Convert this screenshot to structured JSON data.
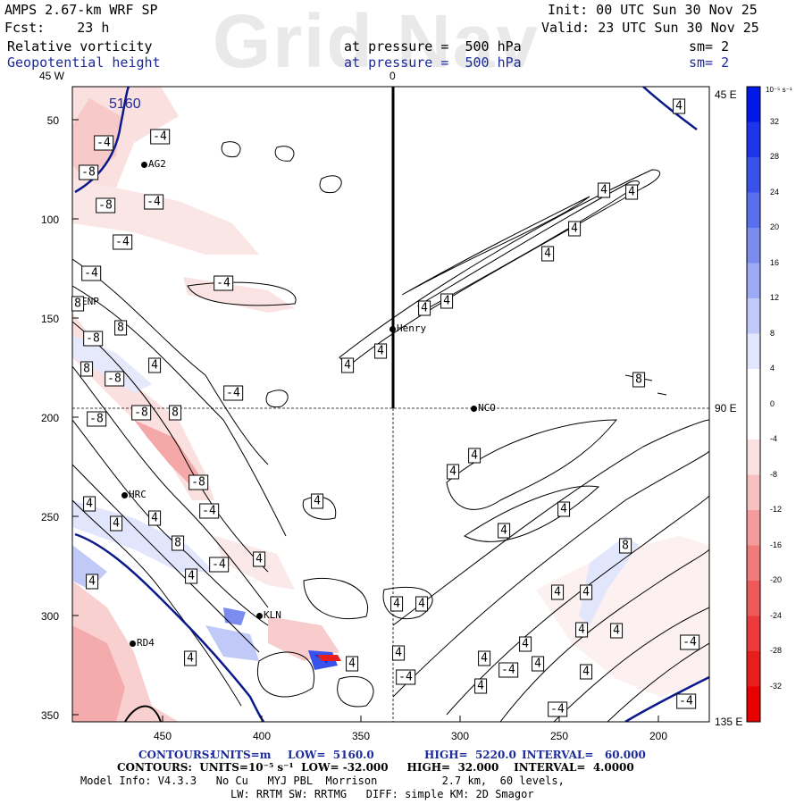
{
  "header": {
    "model": "AMPS 2.67-km WRF SP",
    "init": "Init: 00 UTC Sun 30 Nov 25",
    "fcst": "Fcst:    23 h",
    "valid": "Valid: 23 UTC Sun 30 Nov 25",
    "field1": "Relative vorticity",
    "field1_level": "at pressure =  500 hPa",
    "field1_sm": "sm= 2",
    "field2": "Geopotential height",
    "field2_level": "at pressure =  500 hPa",
    "field2_sm": "sm= 2",
    "watermark": "Grid Nav"
  },
  "map": {
    "meridian_labels": {
      "top_left": "45 W",
      "top_center": "0",
      "right_top": "45 E",
      "right_mid": "90 E",
      "right_bottom": "135 E"
    },
    "y_ticks": [
      "50",
      "100",
      "150",
      "200",
      "250",
      "300",
      "350"
    ],
    "x_ticks": [
      "450",
      "400",
      "350",
      "300",
      "250",
      "200"
    ],
    "height_label": "5160",
    "stations": [
      {
        "name": "AG2"
      },
      {
        "name": "ENP"
      },
      {
        "name": "Henry"
      },
      {
        "name": "NCO"
      },
      {
        "name": "HRC"
      },
      {
        "name": "KLN"
      },
      {
        "name": "RD4"
      }
    ],
    "contour_labels": [
      "-4",
      "-4",
      "-8",
      "-8",
      "-4",
      "-4",
      "-4",
      "-4",
      "8",
      "-8",
      "8",
      "-8",
      "8",
      "-8",
      "-8",
      "4",
      "8",
      "-8",
      "-4",
      "-4",
      "4",
      "4",
      "4",
      "4",
      "8",
      "4",
      "-4",
      "4",
      "4",
      "4",
      "4",
      "4",
      "4",
      "4",
      "4",
      "4",
      "4",
      "4",
      "4",
      "4",
      "4",
      "4",
      "4",
      "4",
      "4",
      "4",
      "4",
      "8",
      "4",
      "4",
      "4",
      "8",
      "-4",
      "4",
      "-4",
      "4",
      "4",
      "4",
      "-4",
      "4",
      "-4",
      "4",
      "-4"
    ]
  },
  "colorbar": {
    "unit": "10⁻⁵ s⁻¹",
    "labels": [
      "32",
      "28",
      "24",
      "20",
      "16",
      "12",
      "8",
      "4",
      "0",
      "-4",
      "-8",
      "-12",
      "-16",
      "-20",
      "-24",
      "-28",
      "-32"
    ],
    "colors": [
      "#0018e8",
      "#1d35ea",
      "#3a52ec",
      "#5a6fee",
      "#7b8cf1",
      "#9ca9f4",
      "#c1c9f8",
      "#e2e6fc",
      "#ffffff",
      "#ffffff",
      "#fbe2e2",
      "#f8c1c1",
      "#f49c9c",
      "#f07b7b",
      "#ee5a5a",
      "#ec3a3a",
      "#ea1d1d",
      "#e80000"
    ]
  },
  "footer": {
    "line1_contours": "CONTOURS:",
    "line1_units": "UNITS=m",
    "line1_low": "LOW=  5160.0",
    "line1_high": "HIGH=  5220.0",
    "line1_interval": "INTERVAL=   60.000",
    "line2": "CONTOURS:  UNITS=10⁻⁵ s⁻¹  LOW= -32.000     HIGH=  32.000    INTERVAL=  4.0000",
    "line3": "Model Info: V4.3.3   No Cu   MYJ PBL  Morrison          2.7 km,  60 levels,",
    "line4": "LW: RRTM SW: RRTMG   DIFF: simple KM: 2D Smagor"
  }
}
